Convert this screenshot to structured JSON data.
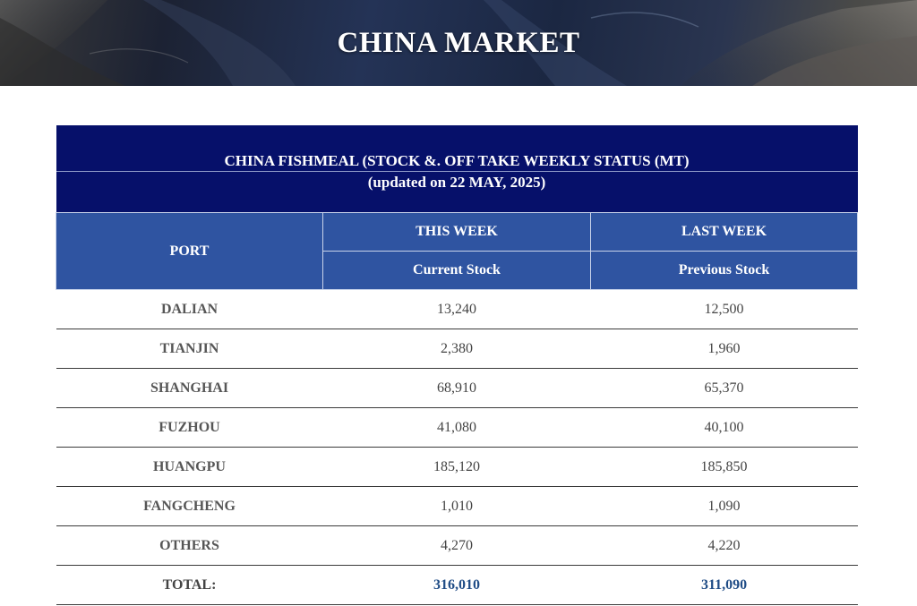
{
  "banner": {
    "title": "CHINA MARKET"
  },
  "table": {
    "title": "CHINA FISHMEAL (STOCK &. OFF TAKE WEEKLY STATUS (MT)",
    "subtitle": "(updated on 22 MAY, 2025)",
    "headers": {
      "port": "PORT",
      "this_week": "THIS WEEK",
      "last_week": "LAST WEEK",
      "current_stock": "Current Stock",
      "previous_stock": "Previous Stock"
    },
    "rows": [
      {
        "port": "DALIAN",
        "current": "13,240",
        "previous": "12,500"
      },
      {
        "port": "TIANJIN",
        "current": "2,380",
        "previous": "1,960"
      },
      {
        "port": "SHANGHAI",
        "current": "68,910",
        "previous": "65,370"
      },
      {
        "port": "FUZHOU",
        "current": "41,080",
        "previous": "40,100"
      },
      {
        "port": "HUANGPU",
        "current": "185,120",
        "previous": "185,850"
      },
      {
        "port": "FANGCHENG",
        "current": "1,010",
        "previous": "1,090"
      },
      {
        "port": "OTHERS",
        "current": "4,270",
        "previous": "4,220"
      }
    ],
    "total": {
      "label": "TOTAL:",
      "current": "316,010",
      "previous": "311,090"
    }
  },
  "colors": {
    "title_bg": "#06106a",
    "header_bg": "#2f54a1",
    "total_value": "#1f4c86"
  }
}
